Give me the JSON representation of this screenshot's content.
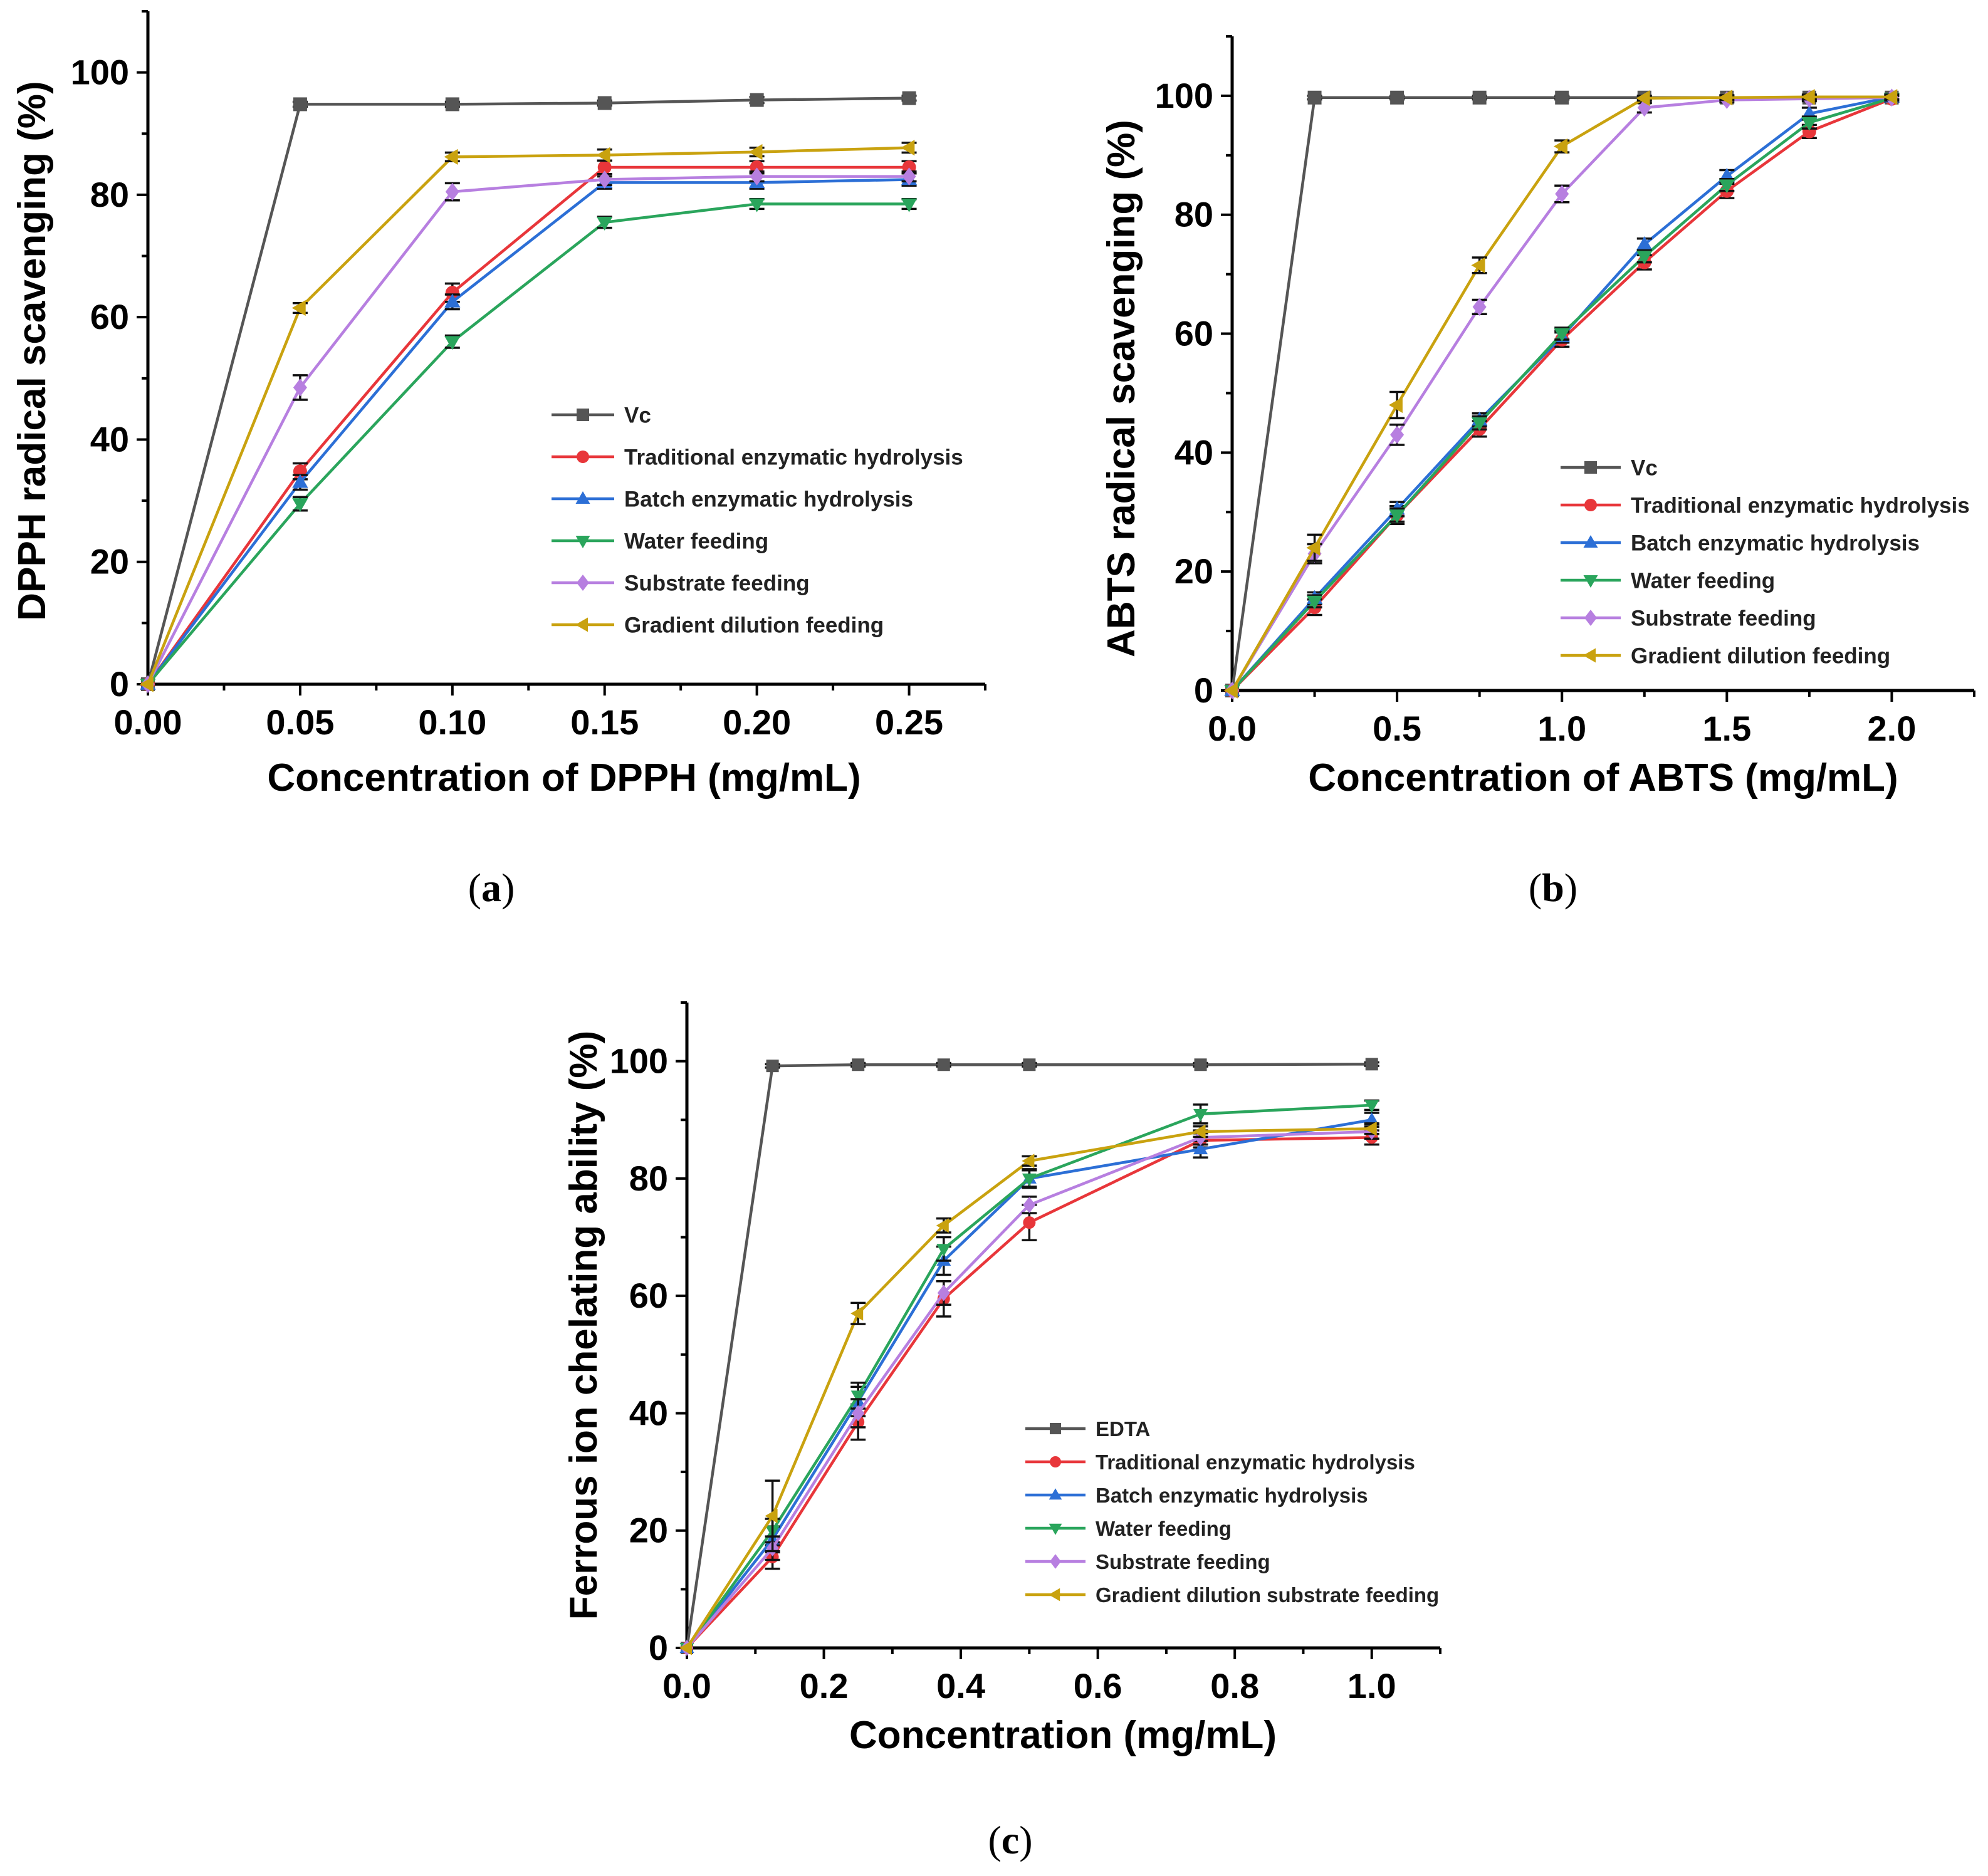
{
  "chart_data": [
    {
      "type": "line",
      "panel_label": "a",
      "xlabel": "Concentration of DPPH (mg/mL)",
      "ylabel": "DPPH radical scavenging (%)",
      "xlim": [
        0,
        0.275
      ],
      "ylim": [
        0,
        110
      ],
      "x_ticks": [
        "0.00",
        "0.05",
        "0.10",
        "0.15",
        "0.20",
        "0.25"
      ],
      "y_ticks": [
        "0",
        "20",
        "40",
        "60",
        "80",
        "100"
      ],
      "legend_position": "right-middle",
      "x": [
        0,
        0.05,
        0.1,
        0.15,
        0.2,
        0.25
      ],
      "series": [
        {
          "name": "Vc",
          "color": "#555555",
          "marker": "square",
          "values": [
            0,
            94.8,
            94.8,
            95.0,
            95.5,
            95.8
          ],
          "errors": [
            0,
            0.4,
            0.4,
            0.4,
            0.5,
            0.4
          ]
        },
        {
          "name": "Traditional enzymatic hydrolysis",
          "color": "#e8363a",
          "marker": "circle",
          "values": [
            0,
            34.8,
            64.0,
            84.5,
            84.5,
            84.5
          ],
          "errors": [
            0,
            1.3,
            1.5,
            1.1,
            1.0,
            1.0
          ]
        },
        {
          "name": "Batch enzymatic hydrolysis",
          "color": "#2c6fd6",
          "marker": "triangle-up",
          "values": [
            0,
            33.0,
            62.5,
            82.0,
            82.0,
            82.5
          ],
          "errors": [
            0,
            1.2,
            1.2,
            1.0,
            1.0,
            1.0
          ]
        },
        {
          "name": "Water feeding",
          "color": "#2aa55c",
          "marker": "triangle-down",
          "values": [
            0,
            29.5,
            56.0,
            75.5,
            78.5,
            78.5
          ],
          "errors": [
            0,
            1.1,
            1.0,
            0.9,
            0.8,
            0.8
          ]
        },
        {
          "name": "Substrate feeding",
          "color": "#b77fe0",
          "marker": "diamond",
          "values": [
            0,
            48.5,
            80.5,
            82.5,
            83.0,
            83.0
          ],
          "errors": [
            0,
            2.0,
            1.4,
            0.9,
            0.8,
            0.8
          ]
        },
        {
          "name": "Gradient dilution feeding",
          "color": "#c9a20f",
          "marker": "triangle-left",
          "values": [
            0,
            61.5,
            86.2,
            86.5,
            87.0,
            87.7
          ],
          "errors": [
            0,
            0.8,
            0.7,
            0.9,
            0.7,
            0.8
          ]
        }
      ]
    },
    {
      "type": "line",
      "panel_label": "b",
      "xlabel": "Concentration of ABTS (mg/mL)",
      "ylabel": "ABTS radical scavenging (%)",
      "xlim": [
        0,
        2.25
      ],
      "ylim": [
        0,
        110
      ],
      "x_ticks": [
        "0.0",
        "0.5",
        "1.0",
        "1.5",
        "2.0"
      ],
      "y_ticks": [
        "0",
        "20",
        "40",
        "60",
        "80",
        "100"
      ],
      "legend_position": "bottom-right",
      "x": [
        0,
        0.25,
        0.5,
        0.75,
        1.0,
        1.25,
        1.5,
        1.75,
        2.0
      ],
      "series": [
        {
          "name": "Vc",
          "color": "#555555",
          "marker": "square",
          "values": [
            0,
            99.7,
            99.7,
            99.7,
            99.7,
            99.7,
            99.7,
            99.7,
            99.7
          ],
          "errors": [
            0,
            0.3,
            0.3,
            0.3,
            0.3,
            0.3,
            0.3,
            0.3,
            0.3
          ]
        },
        {
          "name": "Traditional enzymatic hydrolysis",
          "color": "#e8363a",
          "marker": "circle",
          "values": [
            0,
            14.0,
            29.5,
            44.0,
            59.0,
            72.0,
            84.0,
            94.0,
            99.5
          ],
          "errors": [
            0,
            1.3,
            1.5,
            1.3,
            1.2,
            1.2,
            1.2,
            1.1,
            0.5
          ]
        },
        {
          "name": "Batch enzymatic hydrolysis",
          "color": "#2c6fd6",
          "marker": "triangle-up",
          "values": [
            0,
            15.5,
            30.5,
            45.5,
            59.5,
            75.0,
            86.5,
            97.0,
            99.8
          ],
          "errors": [
            0,
            1.0,
            1.2,
            1.1,
            1.0,
            1.0,
            1.0,
            1.0,
            0.4
          ]
        },
        {
          "name": "Water feeding",
          "color": "#2aa55c",
          "marker": "triangle-down",
          "values": [
            0,
            15.0,
            29.5,
            45.0,
            60.0,
            73.0,
            85.0,
            95.5,
            99.6
          ],
          "errors": [
            0,
            1.0,
            1.1,
            1.1,
            1.0,
            1.0,
            1.0,
            1.0,
            0.4
          ]
        },
        {
          "name": "Substrate feeding",
          "color": "#b77fe0",
          "marker": "diamond",
          "values": [
            0,
            23.0,
            43.0,
            64.5,
            83.5,
            98.0,
            99.3,
            99.5,
            99.7
          ],
          "errors": [
            0,
            1.6,
            1.7,
            1.2,
            1.4,
            0.8,
            0.4,
            0.4,
            0.4
          ]
        },
        {
          "name": "Gradient dilution feeding",
          "color": "#c9a20f",
          "marker": "triangle-left",
          "values": [
            0,
            24.0,
            48.0,
            71.5,
            91.5,
            99.6,
            99.7,
            99.8,
            99.8
          ],
          "errors": [
            0,
            2.2,
            2.2,
            1.3,
            1.0,
            0.4,
            0.4,
            0.4,
            0.4
          ]
        }
      ]
    },
    {
      "type": "line",
      "panel_label": "c",
      "xlabel": "Concentration (mg/mL)",
      "ylabel": "Ferrous ion chelating ability (%)",
      "xlim": [
        0,
        1.1
      ],
      "ylim": [
        0,
        110
      ],
      "x_ticks": [
        "0.0",
        "0.2",
        "0.4",
        "0.6",
        "0.8",
        "1.0"
      ],
      "y_ticks": [
        "0",
        "20",
        "40",
        "60",
        "80",
        "100"
      ],
      "legend_position": "bottom-right",
      "x": [
        0,
        0.125,
        0.25,
        0.375,
        0.5,
        0.75,
        1.0
      ],
      "series": [
        {
          "name": "EDTA",
          "color": "#555555",
          "marker": "square",
          "values": [
            0,
            99.2,
            99.4,
            99.4,
            99.4,
            99.4,
            99.5
          ],
          "errors": [
            0,
            0.3,
            0.3,
            0.3,
            0.3,
            0.3,
            0.3
          ]
        },
        {
          "name": "Traditional enzymatic hydrolysis",
          "color": "#e8363a",
          "marker": "circle",
          "values": [
            0,
            15.5,
            38.5,
            59.5,
            72.5,
            86.5,
            87.0
          ],
          "errors": [
            0,
            2.0,
            3.0,
            3.0,
            3.0,
            1.2,
            1.2
          ]
        },
        {
          "name": "Batch enzymatic hydrolysis",
          "color": "#2c6fd6",
          "marker": "triangle-up",
          "values": [
            0,
            18.5,
            42.0,
            66.0,
            80.0,
            85.0,
            90.0
          ],
          "errors": [
            0,
            2.2,
            2.5,
            2.4,
            1.6,
            1.4,
            1.2
          ]
        },
        {
          "name": "Water feeding",
          "color": "#2aa55c",
          "marker": "triangle-down",
          "values": [
            0,
            20.0,
            43.0,
            68.0,
            80.0,
            91.0,
            92.5
          ],
          "errors": [
            0,
            2.0,
            2.2,
            2.0,
            1.4,
            1.6,
            0.8
          ]
        },
        {
          "name": "Substrate feeding",
          "color": "#b77fe0",
          "marker": "diamond",
          "values": [
            0,
            17.0,
            40.0,
            60.5,
            75.5,
            87.0,
            88.0
          ],
          "errors": [
            0,
            2.0,
            2.4,
            2.0,
            1.4,
            1.2,
            1.2
          ]
        },
        {
          "name": "Gradient dilution substrate feeding",
          "color": "#c9a20f",
          "marker": "triangle-left",
          "values": [
            0,
            22.5,
            57.0,
            72.0,
            83.0,
            88.0,
            88.5
          ],
          "errors": [
            0,
            6.0,
            1.8,
            1.2,
            0.8,
            0.9,
            0.9
          ]
        }
      ]
    }
  ]
}
